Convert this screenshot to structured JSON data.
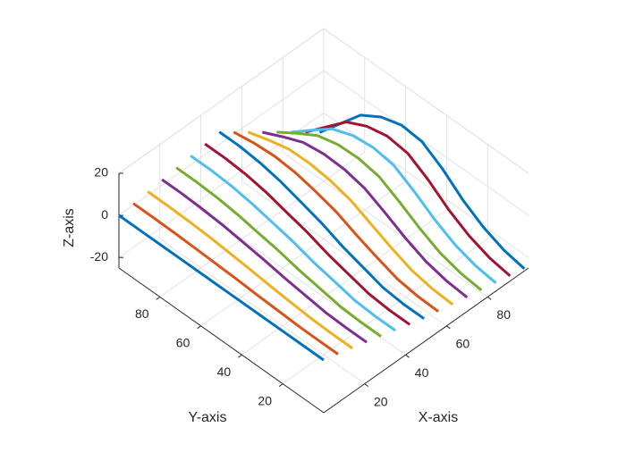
{
  "chart_data": {
    "type": "line3d",
    "xlabel": "X-axis",
    "ylabel": "Y-axis",
    "zlabel": "Z-axis",
    "xlim": [
      0,
      100
    ],
    "ylim": [
      0,
      100
    ],
    "zlim": [
      -25,
      20
    ],
    "xticks": [
      20,
      40,
      60,
      80
    ],
    "yticks": [
      20,
      40,
      60,
      80
    ],
    "zticks": [
      -20,
      0,
      20
    ],
    "grid": true,
    "y": [
      100,
      90,
      80,
      70,
      60,
      50,
      40,
      30,
      20,
      10,
      0
    ],
    "series": [
      {
        "x": 0,
        "color": "#0072BD",
        "values": [
          0,
          0,
          0,
          0,
          0,
          0,
          0,
          0,
          0,
          0,
          0
        ]
      },
      {
        "x": 7,
        "color": "#D95319",
        "values": [
          0.9,
          0.9,
          0.7,
          0.4,
          0,
          -0.4,
          -1,
          -1.4,
          -1.9,
          -2,
          -2
        ]
      },
      {
        "x": 14,
        "color": "#EDB120",
        "values": [
          1.7,
          1.7,
          1.4,
          0.9,
          0,
          -0.9,
          -2,
          -2.9,
          -3.7,
          -4,
          -4
        ]
      },
      {
        "x": 21,
        "color": "#7E2F8E",
        "values": [
          2.6,
          2.6,
          2.1,
          1.3,
          0,
          -1.3,
          -3,
          -4.3,
          -5.6,
          -6,
          -6
        ]
      },
      {
        "x": 28,
        "color": "#77AC30",
        "values": [
          3.4,
          3.4,
          2.9,
          1.7,
          0,
          -1.7,
          -4,
          -5.7,
          -7.4,
          -8,
          -8
        ]
      },
      {
        "x": 35,
        "color": "#4DBEEE",
        "values": [
          4.3,
          4.3,
          3.6,
          2.1,
          0,
          -2.1,
          -5,
          -7.1,
          -9.3,
          -10,
          -10
        ]
      },
      {
        "x": 42,
        "color": "#A2142F",
        "values": [
          5.1,
          5.1,
          4.3,
          2.6,
          0,
          -2.6,
          -6,
          -8.6,
          -11.1,
          -12,
          -12
        ]
      },
      {
        "x": 49,
        "color": "#0072BD",
        "values": [
          6,
          6,
          5,
          3,
          0,
          -3,
          -7,
          -10,
          -13,
          -14,
          -14
        ]
      },
      {
        "x": 56,
        "color": "#D95319",
        "values": [
          1.1,
          2.7,
          3.4,
          2.6,
          0.4,
          -2.3,
          -6.6,
          -10.3,
          -13.7,
          -15.1,
          -15.4
        ]
      },
      {
        "x": 63,
        "color": "#EDB120",
        "values": [
          -3.7,
          -0.6,
          1.9,
          2.1,
          0.9,
          -1.6,
          -6.1,
          -10.6,
          -14.4,
          -16.3,
          -16.9
        ]
      },
      {
        "x": 70,
        "color": "#7E2F8E",
        "values": [
          -8.6,
          -3.9,
          0.3,
          1.7,
          1.3,
          -0.9,
          -5.7,
          -10.9,
          -15.1,
          -17.4,
          -18.3
        ]
      },
      {
        "x": 77,
        "color": "#77AC30",
        "values": [
          -13.4,
          -7.1,
          -1.3,
          1.3,
          1.7,
          -0.1,
          -5.3,
          -11.1,
          -15.9,
          -18.6,
          -19.7
        ]
      },
      {
        "x": 84,
        "color": "#4DBEEE",
        "values": [
          -18.3,
          -10.4,
          -2.9,
          0.9,
          2.1,
          0.6,
          -4.9,
          -11.4,
          -16.6,
          -19.7,
          -21.1
        ]
      },
      {
        "x": 91,
        "color": "#A2142F",
        "values": [
          -23.1,
          -13.7,
          -4.4,
          0.4,
          2.6,
          1.3,
          -4.4,
          -11.7,
          -17.3,
          -20.9,
          -22.6
        ]
      },
      {
        "x": 98,
        "color": "#0072BD",
        "values": [
          -28,
          -17,
          -6,
          0,
          3,
          2,
          -4,
          -12,
          -18,
          -22,
          -24
        ]
      }
    ]
  }
}
